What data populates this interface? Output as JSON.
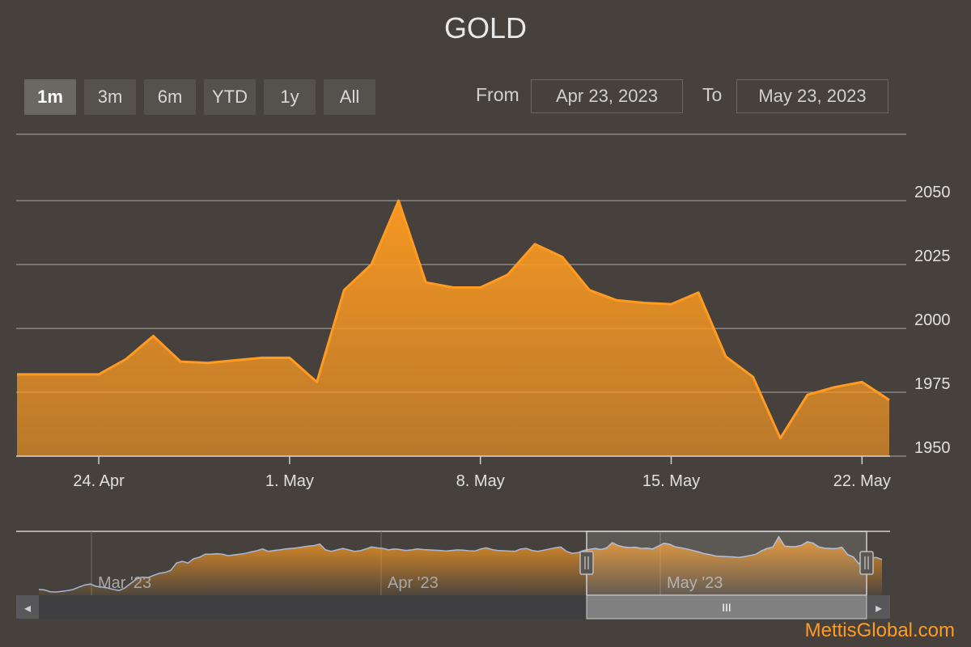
{
  "chart_data": {
    "type": "area",
    "title": "GOLD",
    "series": [
      {
        "x": [
          "2023-04-21",
          "2023-04-24",
          "2023-04-25",
          "2023-04-26",
          "2023-04-27",
          "2023-04-28",
          "2023-04-29",
          "2023-04-30",
          "2023-05-01",
          "2023-05-02",
          "2023-05-03",
          "2023-05-04",
          "2023-05-05",
          "2023-05-06",
          "2023-05-07",
          "2023-05-08",
          "2023-05-09",
          "2023-05-10",
          "2023-05-11",
          "2023-05-12",
          "2023-05-13",
          "2023-05-14",
          "2023-05-15",
          "2023-05-16",
          "2023-05-17",
          "2023-05-18",
          "2023-05-19",
          "2023-05-20",
          "2023-05-21",
          "2023-05-22",
          "2023-05-23"
        ],
        "y": [
          1982,
          1982,
          1988,
          1997,
          1987,
          1986.5,
          1987.5,
          1988.5,
          1988.5,
          1979,
          2015,
          2025,
          2050,
          2018,
          2016,
          2016,
          2021,
          2033,
          2028,
          2015,
          2011,
          2010,
          2009.5,
          2014,
          1989,
          1981,
          1957,
          1974,
          1977,
          1979,
          1972
        ]
      }
    ],
    "y_ticks": [
      1950,
      1975,
      2000,
      2025,
      2050
    ],
    "x_ticks": [
      {
        "date": "2023-04-24",
        "label": "24. Apr"
      },
      {
        "date": "2023-05-01",
        "label": "1. May"
      },
      {
        "date": "2023-05-08",
        "label": "8. May"
      },
      {
        "date": "2023-05-15",
        "label": "15. May"
      },
      {
        "date": "2023-05-22",
        "label": "22. May"
      }
    ],
    "ylim": [
      1950,
      2076
    ],
    "grid": true,
    "line_color": "#ff9b21",
    "navigator": {
      "labels": [
        "Mar '23",
        "Apr '23",
        "May '23"
      ],
      "series": [
        1870,
        1868,
        1862,
        1861,
        1863,
        1866,
        1870,
        1878,
        1885,
        1888,
        1880,
        1878,
        1875,
        1870,
        1866,
        1875,
        1890,
        1905,
        1912,
        1910,
        1918,
        1925,
        1928,
        1935,
        1960,
        1966,
        1960,
        1975,
        1980,
        1990,
        1990,
        1992,
        1990,
        1985,
        1988,
        1990,
        1993,
        1998,
        2002,
        2008,
        2000,
        2003,
        2005,
        2008,
        2010,
        2012,
        2015,
        2018,
        2020,
        2025,
        2005,
        2000,
        2005,
        2010,
        2005,
        2000,
        2002,
        2008,
        2015,
        2012,
        2010,
        2005,
        2008,
        2006,
        2003,
        2005,
        2008,
        2006,
        2005,
        2004,
        2003,
        2001,
        2003,
        2005,
        2004,
        2002,
        2001,
        2008,
        2012,
        2006,
        2003,
        2002,
        2001,
        2000,
        2008,
        2010,
        2003,
        2000,
        2004,
        2008,
        2012,
        2015,
        2000,
        1993,
        1996,
        2003,
        2007,
        2010,
        2006,
        2012,
        2030,
        2020,
        2015,
        2013,
        2014,
        2010,
        2011,
        2008,
        2018,
        2028,
        2024,
        2015,
        2012,
        2008,
        2003,
        1998,
        1992,
        1989,
        1984,
        1983,
        1982,
        1981,
        1979,
        1982,
        1986,
        1990,
        2002,
        2010,
        2015,
        2050,
        2018,
        2016,
        2016,
        2021,
        2033,
        2028,
        2015,
        2011,
        2010,
        2009.5,
        2014,
        1989,
        1981,
        1957,
        1974,
        1977,
        1979,
        1972
      ],
      "selected_range": [
        "Apr 23, 2023",
        "May 23, 2023"
      ]
    }
  },
  "toolbar": {
    "buttons": [
      {
        "label": "1m",
        "active": true
      },
      {
        "label": "3m",
        "active": false
      },
      {
        "label": "6m",
        "active": false
      },
      {
        "label": "YTD",
        "active": false
      },
      {
        "label": "1y",
        "active": false
      },
      {
        "label": "All",
        "active": false
      }
    ],
    "from_label": "From",
    "to_label": "To",
    "from_value": "Apr 23, 2023",
    "to_value": "May 23, 2023"
  },
  "scrollbar": {
    "left_arrow": "◂",
    "right_arrow": "▸",
    "grip": "III"
  },
  "credit": "MettisGlobal.com",
  "colors": {
    "background": "#46413d",
    "accent": "#ff9b21",
    "navigator_line": "#a7b8d8"
  }
}
